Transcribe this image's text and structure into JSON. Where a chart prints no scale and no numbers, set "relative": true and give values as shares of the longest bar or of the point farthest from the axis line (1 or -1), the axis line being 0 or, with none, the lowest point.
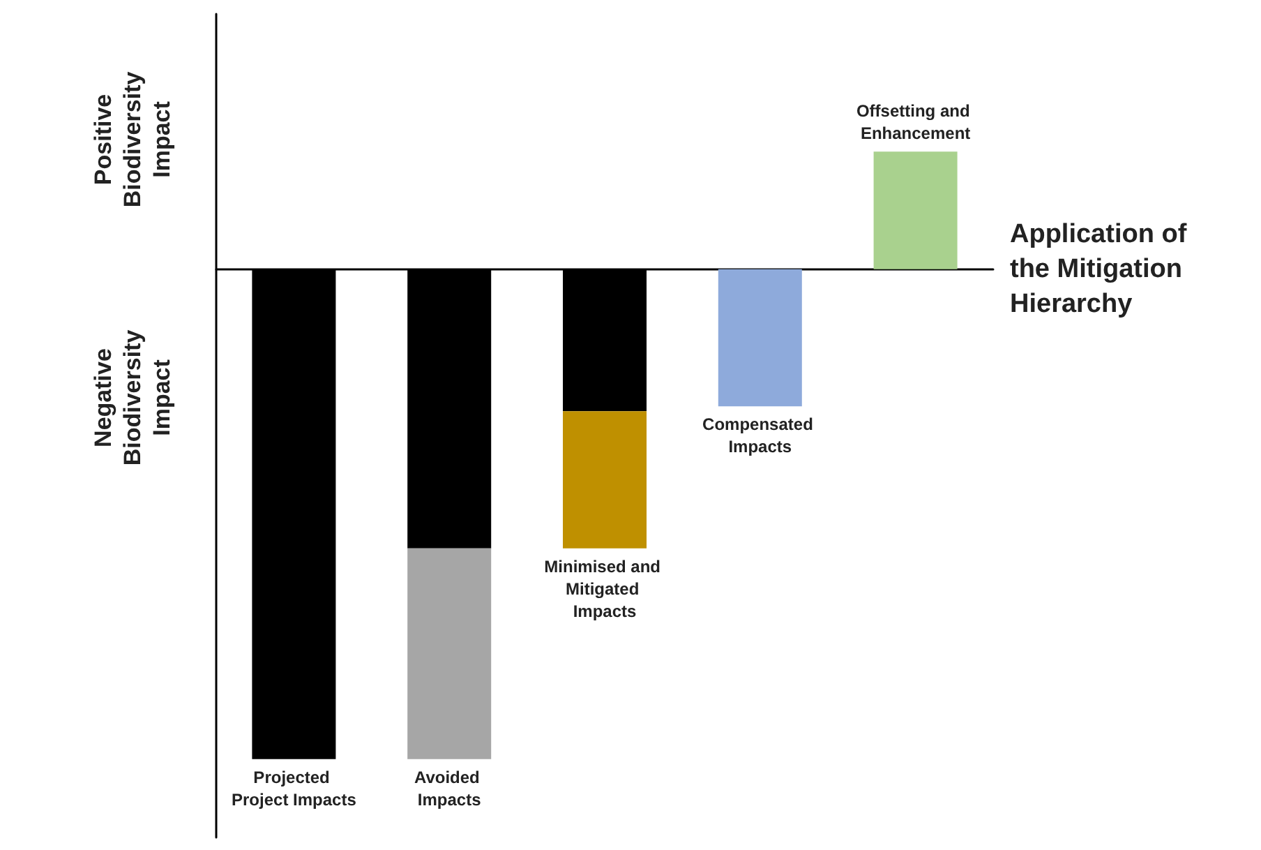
{
  "chart_data": {
    "type": "bar",
    "relative": true,
    "stacked": true,
    "xlabel": "Application of the Mitigation Hierarchy",
    "categories": [
      "Projected Project Impacts",
      "Avoided Impacts",
      "Minimised and Mitigated Impacts",
      "Compensated Impacts",
      "Offsetting and Enhancement"
    ],
    "series": [
      {
        "color": "#000000",
        "values": [
          -1,
          -0.57,
          -0.29,
          null,
          null
        ]
      },
      {
        "color": "#a6a6a6",
        "values": [
          null,
          -0.43,
          null,
          null,
          null
        ]
      },
      {
        "color": "#bf9000",
        "values": [
          null,
          null,
          -0.28,
          null,
          null
        ]
      },
      {
        "color": "#8eaadb",
        "values": [
          null,
          null,
          null,
          -0.28,
          null
        ]
      },
      {
        "color": "#a9d18e",
        "values": [
          null,
          null,
          null,
          null,
          0.24
        ]
      }
    ],
    "annotations": [
      "Positive Biodiversity Impact",
      "Negative Biodiversity Impact"
    ],
    "grid": false
  }
}
